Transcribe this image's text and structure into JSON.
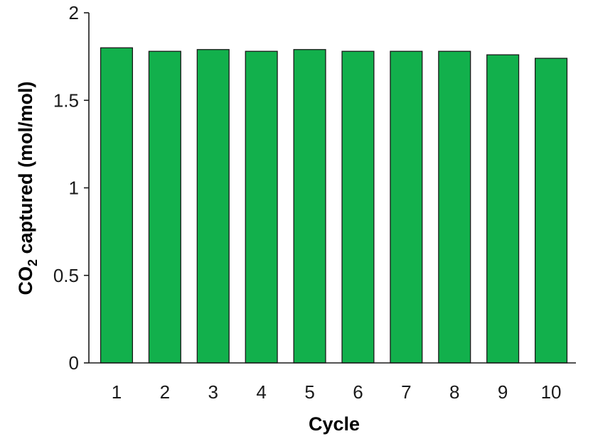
{
  "chart_data": {
    "type": "bar",
    "categories": [
      "1",
      "2",
      "3",
      "4",
      "5",
      "6",
      "7",
      "8",
      "9",
      "10"
    ],
    "values": [
      1.8,
      1.78,
      1.79,
      1.78,
      1.79,
      1.78,
      1.78,
      1.78,
      1.76,
      1.74
    ],
    "xlabel": "Cycle",
    "ylabel": {
      "main": "CO",
      "subscript": "2",
      "rest": " captured (mol/mol)"
    },
    "ylim": [
      0,
      2
    ],
    "yticks": [
      "0",
      "0.5",
      "1",
      "1.5",
      "2"
    ],
    "grid": false,
    "legend": "none",
    "colors": {
      "bar_fill": "#12b04c",
      "bar_stroke": "#1a1a1a",
      "axis": "#1a1a1a"
    }
  }
}
